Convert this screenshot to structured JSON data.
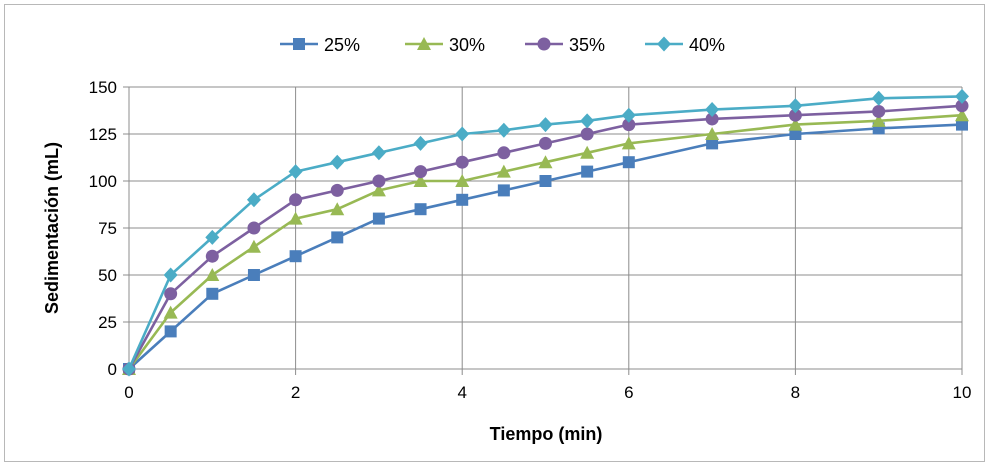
{
  "chart_data": {
    "type": "line",
    "title": "",
    "xlabel": "Tiempo (min)",
    "ylabel": "Sedimentación (mL)",
    "xlim": [
      0,
      10
    ],
    "ylim": [
      0,
      150
    ],
    "xticks": [
      0,
      2,
      4,
      6,
      8,
      10
    ],
    "yticks": [
      0,
      25,
      50,
      75,
      100,
      125,
      150
    ],
    "grid": true,
    "legend_position": "top-center",
    "series": [
      {
        "name": "25%",
        "color": "#4a7ebb",
        "marker": "square",
        "x": [
          0,
          0.5,
          1,
          1.5,
          2,
          2.5,
          3,
          3.5,
          4,
          4.5,
          5,
          5.5,
          6,
          7,
          8,
          9,
          10
        ],
        "y": [
          0,
          20,
          40,
          50,
          60,
          70,
          80,
          85,
          90,
          95,
          100,
          105,
          110,
          120,
          125,
          128,
          130
        ]
      },
      {
        "name": "30%",
        "color": "#98b954",
        "marker": "triangle",
        "x": [
          0,
          0.5,
          1,
          1.5,
          2,
          2.5,
          3,
          3.5,
          4,
          4.5,
          5,
          5.5,
          6,
          7,
          8,
          9,
          10
        ],
        "y": [
          0,
          30,
          50,
          65,
          80,
          85,
          95,
          100,
          100,
          105,
          110,
          115,
          120,
          125,
          130,
          132,
          135
        ]
      },
      {
        "name": "35%",
        "color": "#7d60a0",
        "marker": "circle",
        "x": [
          0,
          0.5,
          1,
          1.5,
          2,
          2.5,
          3,
          3.5,
          4,
          4.5,
          5,
          5.5,
          6,
          7,
          8,
          9,
          10
        ],
        "y": [
          0,
          40,
          60,
          75,
          90,
          95,
          100,
          105,
          110,
          115,
          120,
          125,
          130,
          133,
          135,
          137,
          140
        ]
      },
      {
        "name": "40%",
        "color": "#4bacc6",
        "marker": "diamond",
        "x": [
          0,
          0.5,
          1,
          1.5,
          2,
          2.5,
          3,
          3.5,
          4,
          4.5,
          5,
          5.5,
          6,
          7,
          8,
          9,
          10
        ],
        "y": [
          0,
          50,
          70,
          90,
          105,
          110,
          115,
          120,
          125,
          127,
          130,
          132,
          135,
          138,
          140,
          144,
          145
        ]
      }
    ]
  }
}
